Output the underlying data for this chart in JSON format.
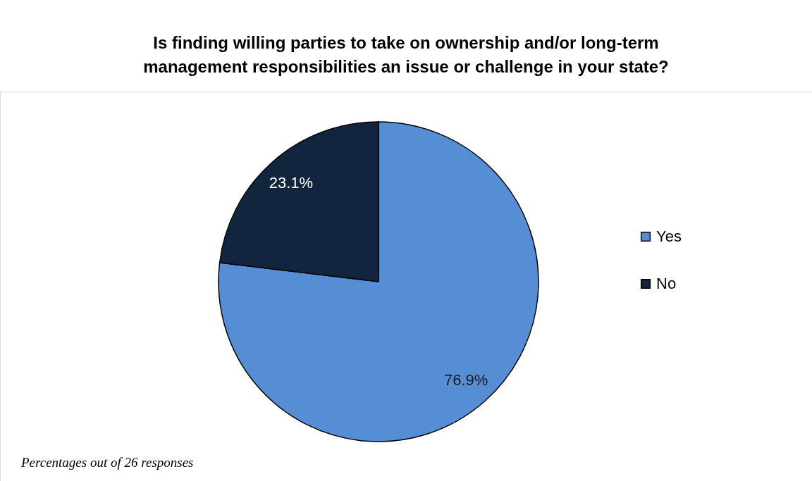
{
  "chart_data": {
    "type": "pie",
    "title": "Is finding willing parties to take on ownership and/or long-term\nmanagement responsibilities an issue or challenge in your state?",
    "categories": [
      "Yes",
      "No"
    ],
    "values": [
      76.9,
      23.1
    ],
    "colors": [
      "#558ed5",
      "#12253f"
    ],
    "value_labels": [
      "76.9%",
      "23.1%"
    ],
    "legend": "right",
    "annotations": [
      "Percentages out of 26 responses"
    ]
  }
}
